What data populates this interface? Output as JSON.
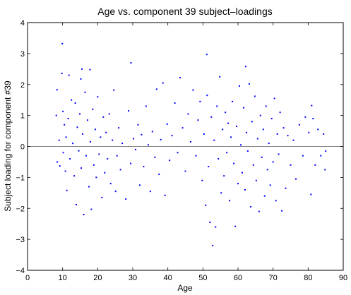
{
  "chart_data": {
    "type": "scatter",
    "title": "Age vs. component 39 subject–loadings",
    "xlabel": "Age",
    "ylabel": "Subject loading for component #39",
    "xlim": [
      0,
      90
    ],
    "ylim": [
      -4,
      4
    ],
    "xticks": [
      "0",
      "10",
      "20",
      "30",
      "40",
      "50",
      "60",
      "70",
      "80",
      "90"
    ],
    "yticks": [
      "4",
      "3",
      "2",
      "1",
      "0",
      "−1",
      "−2",
      "−3",
      "−4"
    ],
    "grid": false,
    "zero_line": true,
    "marker_color": "#0000ff",
    "points": [
      [
        9.9,
        3.32
      ],
      [
        29.5,
        2.7
      ],
      [
        51.1,
        2.97
      ],
      [
        62.2,
        2.58
      ],
      [
        9.8,
        2.36
      ],
      [
        15.5,
        2.5
      ],
      [
        17.8,
        2.48
      ],
      [
        11.8,
        2.3
      ],
      [
        15.2,
        2.18
      ],
      [
        8.4,
        1.83
      ],
      [
        8.2,
        1.0
      ],
      [
        9.0,
        0.2
      ],
      [
        8.5,
        -0.5
      ],
      [
        9.2,
        -0.63
      ],
      [
        10.1,
        1.13
      ],
      [
        10.5,
        0.7
      ],
      [
        11.0,
        0.3
      ],
      [
        10.2,
        -0.2
      ],
      [
        10.8,
        -0.8
      ],
      [
        11.2,
        -1.42
      ],
      [
        11.6,
        0.9
      ],
      [
        12.1,
        -0.4
      ],
      [
        12.5,
        1.5
      ],
      [
        12.9,
        0.1
      ],
      [
        13.3,
        -0.95
      ],
      [
        13.6,
        1.4
      ],
      [
        13.9,
        -1.88
      ],
      [
        14.2,
        0.62
      ],
      [
        14.6,
        -0.14
      ],
      [
        14.9,
        1.05
      ],
      [
        15.3,
        -0.7
      ],
      [
        15.7,
        0.4
      ],
      [
        16.0,
        -2.2
      ],
      [
        16.4,
        1.75
      ],
      [
        16.7,
        -0.3
      ],
      [
        17.1,
        0.85
      ],
      [
        17.5,
        -1.3
      ],
      [
        17.9,
        0.15
      ],
      [
        18.2,
        -2.03
      ],
      [
        18.6,
        1.2
      ],
      [
        18.9,
        -0.6
      ],
      [
        19.3,
        0.55
      ],
      [
        19.6,
        -1.0
      ],
      [
        20.0,
        1.6
      ],
      [
        20.4,
        -0.25
      ],
      [
        20.8,
        0.3
      ],
      [
        21.2,
        -1.65
      ],
      [
        21.6,
        0.95
      ],
      [
        22.0,
        -0.85
      ],
      [
        22.4,
        0.45
      ],
      [
        22.8,
        -0.4
      ],
      [
        23.3,
        1.05
      ],
      [
        23.7,
        -1.2
      ],
      [
        24.2,
        0.2
      ],
      [
        24.6,
        1.82
      ],
      [
        25.1,
        -1.45
      ],
      [
        25.5,
        -0.3
      ],
      [
        26.0,
        0.6
      ],
      [
        26.5,
        -0.75
      ],
      [
        27.0,
        0.1
      ],
      [
        28.0,
        -1.7
      ],
      [
        28.8,
        1.15
      ],
      [
        29.4,
        -0.55
      ],
      [
        30.2,
        0.25
      ],
      [
        30.8,
        -0.1
      ],
      [
        31.5,
        0.7
      ],
      [
        32.0,
        -1.25
      ],
      [
        32.5,
        0.38
      ],
      [
        33.1,
        -0.65
      ],
      [
        33.8,
        1.3
      ],
      [
        34.4,
        0.05
      ],
      [
        35.0,
        -1.45
      ],
      [
        35.6,
        0.48
      ],
      [
        36.3,
        -0.35
      ],
      [
        36.8,
        1.85
      ],
      [
        37.5,
        -0.9
      ],
      [
        38.0,
        0.22
      ],
      [
        38.6,
        2.05
      ],
      [
        39.2,
        -1.58
      ],
      [
        39.8,
        0.72
      ],
      [
        40.5,
        -0.45
      ],
      [
        41.2,
        0.35
      ],
      [
        42.0,
        1.4
      ],
      [
        42.8,
        -0.2
      ],
      [
        43.5,
        2.22
      ],
      [
        44.2,
        0.6
      ],
      [
        45.0,
        -0.8
      ],
      [
        45.8,
        1.05
      ],
      [
        46.5,
        0.15
      ],
      [
        47.2,
        1.82
      ],
      [
        48.0,
        -0.3
      ],
      [
        48.6,
        0.85
      ],
      [
        49.2,
        1.45
      ],
      [
        49.8,
        -1.1
      ],
      [
        50.3,
        0.4
      ],
      [
        50.8,
        -1.9
      ],
      [
        51.2,
        1.65
      ],
      [
        51.6,
        -0.65
      ],
      [
        52.0,
        -2.45
      ],
      [
        52.4,
        0.95
      ],
      [
        52.8,
        -3.2
      ],
      [
        53.2,
        0.2
      ],
      [
        53.6,
        -2.6
      ],
      [
        54.0,
        1.3
      ],
      [
        54.4,
        -0.4
      ],
      [
        54.8,
        2.25
      ],
      [
        55.2,
        -1.5
      ],
      [
        55.6,
        0.55
      ],
      [
        56.0,
        -0.95
      ],
      [
        56.4,
        1.1
      ],
      [
        56.8,
        -0.2
      ],
      [
        57.2,
        0.75
      ],
      [
        57.6,
        -1.75
      ],
      [
        58.0,
        0.3
      ],
      [
        58.4,
        1.45
      ],
      [
        58.8,
        -0.55
      ],
      [
        59.2,
        -2.58
      ],
      [
        59.6,
        0.65
      ],
      [
        60.0,
        -1.2
      ],
      [
        60.4,
        1.95
      ],
      [
        60.8,
        0.05
      ],
      [
        61.2,
        -0.85
      ],
      [
        61.6,
        1.25
      ],
      [
        62.0,
        -1.4
      ],
      [
        62.4,
        0.45
      ],
      [
        62.8,
        -0.15
      ],
      [
        63.2,
        2.02
      ],
      [
        63.6,
        -1.95
      ],
      [
        64.0,
        0.8
      ],
      [
        64.4,
        -0.6
      ],
      [
        64.8,
        1.62
      ],
      [
        65.2,
        -1.1
      ],
      [
        65.6,
        0.25
      ],
      [
        66.0,
        -2.1
      ],
      [
        66.4,
        1.0
      ],
      [
        66.8,
        -0.35
      ],
      [
        67.2,
        0.55
      ],
      [
        67.6,
        -1.6
      ],
      [
        68.0,
        1.3
      ],
      [
        68.4,
        -0.75
      ],
      [
        68.8,
        0.1
      ],
      [
        69.2,
        -1.25
      ],
      [
        69.6,
        0.9
      ],
      [
        70.0,
        -0.5
      ],
      [
        70.4,
        1.55
      ],
      [
        70.8,
        -1.75
      ],
      [
        71.2,
        0.4
      ],
      [
        71.6,
        -0.25
      ],
      [
        72.0,
        1.1
      ],
      [
        72.5,
        -2.08
      ],
      [
        73.0,
        0.6
      ],
      [
        73.6,
        -1.35
      ],
      [
        74.2,
        0.35
      ],
      [
        75.0,
        -0.6
      ],
      [
        75.8,
        0.2
      ],
      [
        76.5,
        -1.05
      ],
      [
        77.5,
        0.7
      ],
      [
        78.5,
        -0.3
      ],
      [
        79.2,
        0.95
      ],
      [
        80.2,
        0.45
      ],
      [
        80.8,
        -1.55
      ],
      [
        81.4,
        0.9
      ],
      [
        82.0,
        -0.6
      ],
      [
        82.8,
        0.55
      ],
      [
        83.6,
        -0.3
      ],
      [
        84.4,
        0.4
      ],
      [
        85.0,
        -0.15
      ],
      [
        84.8,
        -0.75
      ],
      [
        81.0,
        1.32
      ]
    ]
  }
}
